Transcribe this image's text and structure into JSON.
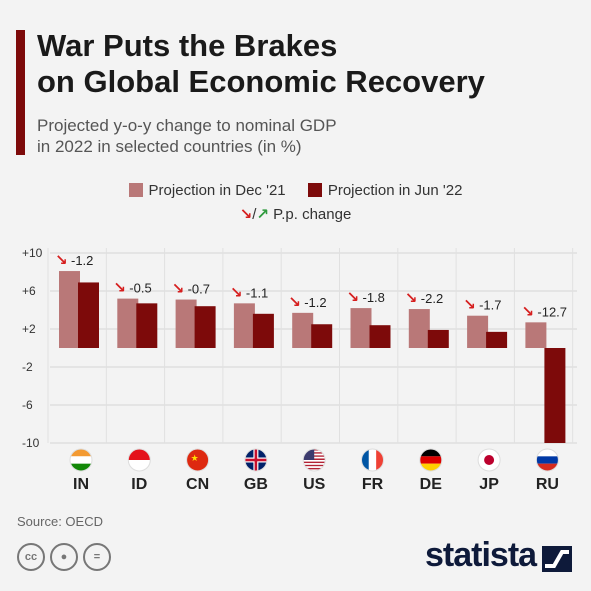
{
  "title_line1": "War Puts the Brakes",
  "title_line2": "on Global Economic Recovery",
  "subtitle_line1": "Projected y-o-y change to nominal GDP",
  "subtitle_line2": "in 2022 in selected countries (in %)",
  "legend": {
    "dec_label": "Projection in Dec '21",
    "jun_label": "Projection in Jun '22",
    "pp_label": "P.p. change",
    "pp_separator": "/"
  },
  "colors": {
    "dec": "#b97878",
    "jun": "#7d0a0a",
    "arrow_down": "#d61f1f",
    "arrow_up": "#2e9a3d",
    "grid": "#d6d6d6"
  },
  "source": "Source: OECD",
  "brand": "statista",
  "chart_data": {
    "type": "bar",
    "categories": [
      "IN",
      "ID",
      "CN",
      "GB",
      "US",
      "FR",
      "DE",
      "JP",
      "RU"
    ],
    "flag_icons": [
      "india-flag-icon",
      "indonesia-flag-icon",
      "china-flag-icon",
      "uk-flag-icon",
      "usa-flag-icon",
      "france-flag-icon",
      "germany-flag-icon",
      "japan-flag-icon",
      "russia-flag-icon"
    ],
    "series": [
      {
        "name": "Projection in Dec '21",
        "values": [
          8.1,
          5.2,
          5.1,
          4.7,
          3.7,
          4.2,
          4.1,
          3.4,
          2.7
        ]
      },
      {
        "name": "Projection in Jun '22",
        "values": [
          6.9,
          4.7,
          4.4,
          3.6,
          2.5,
          2.4,
          1.9,
          1.7,
          -10.0
        ]
      }
    ],
    "pp_change": [
      "-1.2",
      "-0.5",
      "-0.7",
      "-1.1",
      "-1.2",
      "-1.8",
      "-2.2",
      "-1.7",
      "-12.7"
    ],
    "yticks": [
      "+10",
      "+6",
      "+2",
      "-2",
      "-6",
      "-10"
    ],
    "ytick_values": [
      10,
      6,
      2,
      -2,
      -6,
      -10
    ],
    "ylim": [
      -10,
      10
    ],
    "grid": true,
    "legend_position": "top"
  }
}
